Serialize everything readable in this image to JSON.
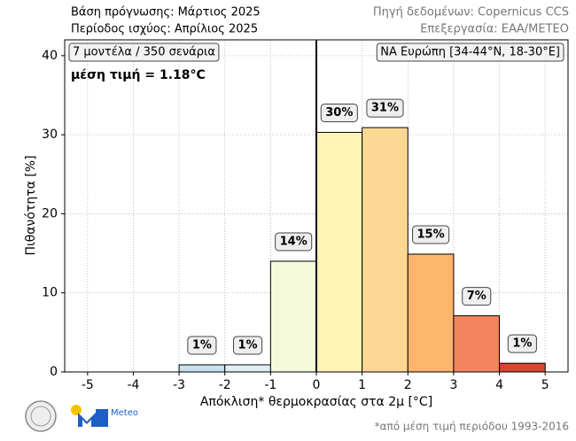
{
  "header": {
    "left": [
      "Βάση πρόγνωσης: Μάρτιος 2025",
      "Περίοδος ισχύος: Απρίλιος 2025"
    ],
    "right": [
      "Πηγή δεδομένων: Copernicus CCS",
      "Επεξεργασία: ΕΑΑ/METEO"
    ]
  },
  "chart_data": {
    "type": "histogram",
    "bins": [
      -5,
      -4,
      -3,
      -2,
      -1,
      0,
      1,
      2,
      3,
      4,
      5
    ],
    "values": [
      0,
      0,
      0.9,
      0.9,
      14,
      30.3,
      30.9,
      14.9,
      7.1,
      1.1
    ],
    "value_labels": [
      null,
      null,
      "1%",
      "1%",
      "14%",
      "30%",
      "31%",
      "15%",
      "7%",
      "1%"
    ],
    "colors": [
      "#c6e2f0",
      "#c6e2f0",
      "#c6e2f0",
      "#dfeff6",
      "#f5fadb",
      "#fff3b5",
      "#fdd895",
      "#fdb46d",
      "#f4845d",
      "#d9462f"
    ],
    "xlim": [
      -5.5,
      5.5
    ],
    "xticks": [
      -5,
      -4,
      -3,
      -2,
      -1,
      0,
      1,
      2,
      3,
      4,
      5
    ],
    "ylim": [
      0,
      42
    ],
    "yticks": [
      0,
      10,
      20,
      30,
      40
    ],
    "grid": true,
    "vline": 0,
    "xlabel": "Απόκλιση* θερμοκρασίας στα 2μ [°C]",
    "ylabel": "Πιθανότητα [%]",
    "annotations": [
      "7 μοντέλα / 350 σενάρια",
      "ΝΑ Ευρώπη [34-44°N, 18-30°E]",
      "μέση τιμή = 1.18°C"
    ]
  },
  "footer": {
    "logo_text": "Meteo",
    "note": "*από μέση τιμή περιόδου 1993-2016"
  }
}
